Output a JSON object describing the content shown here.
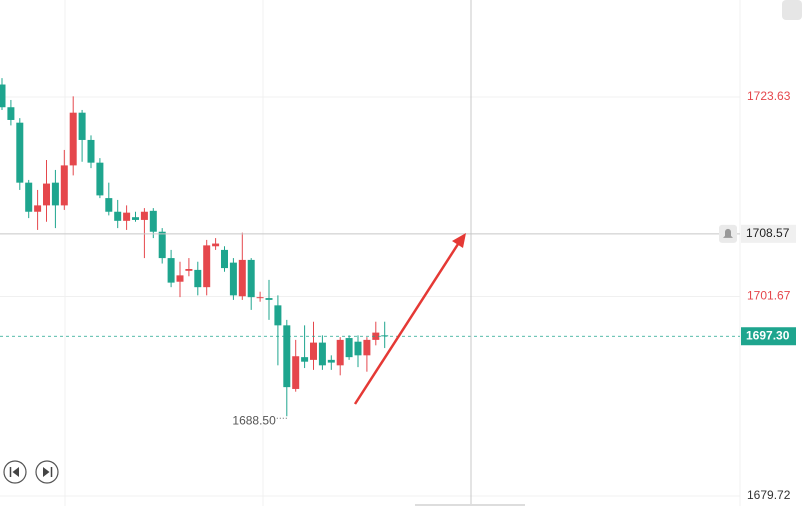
{
  "chart_data": {
    "type": "candlestick",
    "open": [
      1725.0,
      1722.5,
      1720.8,
      1714.2,
      1711.0,
      1711.7,
      1714.2,
      1711.7,
      1716.1,
      1721.9,
      1718.9,
      1716.4,
      1712.5,
      1711.0,
      1710.0,
      1710.4,
      1710.1,
      1711.1,
      1708.8,
      1705.9,
      1703.3,
      1704.5,
      1704.6,
      1702.7,
      1707.2,
      1706.8,
      1705.4,
      1701.7,
      1705.7,
      1701.5,
      1701.5,
      1700.7,
      1698.5,
      1691.5,
      1695.0,
      1694.7,
      1696.6,
      1694.7,
      1694.1,
      1697.1,
      1696.7,
      1695.2,
      1696.9,
      1697.4
    ],
    "high": [
      1725.7,
      1723.3,
      1721.3,
      1714.5,
      1713.4,
      1716.7,
      1715.6,
      1717.8,
      1723.7,
      1722.2,
      1719.4,
      1716.9,
      1714.2,
      1712.3,
      1711.7,
      1711.0,
      1711.4,
      1711.4,
      1709.2,
      1706.8,
      1705.5,
      1705.9,
      1705.5,
      1707.9,
      1708.1,
      1707.2,
      1705.9,
      1708.7,
      1705.9,
      1702.2,
      1703.5,
      1701.8,
      1699.1,
      1696.9,
      1698.5,
      1698.9,
      1697.4,
      1695.2,
      1697.2,
      1697.4,
      1697.4,
      1697.2,
      1698.9,
      1698.9
    ],
    "low": [
      1722.2,
      1720.5,
      1713.4,
      1710.3,
      1709.0,
      1709.9,
      1709.2,
      1711.2,
      1715.0,
      1716.5,
      1715.8,
      1712.5,
      1710.6,
      1709.2,
      1709.0,
      1709.9,
      1705.9,
      1708.1,
      1705.3,
      1702.7,
      1701.6,
      1703.9,
      1701.8,
      1701.8,
      1706.8,
      1704.4,
      1701.3,
      1701.3,
      1700.2,
      1701.1,
      1699.1,
      1694.1,
      1688.5,
      1691.2,
      1693.8,
      1693.6,
      1693.6,
      1693.6,
      1693.0,
      1694.7,
      1693.9,
      1693.4,
      1696.3,
      1696.0
    ],
    "close": [
      1722.5,
      1721.1,
      1714.2,
      1711.0,
      1711.7,
      1714.1,
      1711.7,
      1716.1,
      1721.9,
      1718.9,
      1716.4,
      1712.8,
      1711.0,
      1710.0,
      1710.9,
      1710.1,
      1711.0,
      1708.8,
      1705.9,
      1703.2,
      1704.0,
      1704.7,
      1702.7,
      1707.3,
      1707.5,
      1704.8,
      1701.8,
      1705.7,
      1701.6,
      1701.6,
      1701.3,
      1698.5,
      1691.7,
      1695.1,
      1694.5,
      1696.6,
      1694.1,
      1694.4,
      1696.9,
      1695.0,
      1695.2,
      1696.9,
      1697.7,
      1697.3
    ],
    "up_color": "#e5474c",
    "down_color": "#1ea58e",
    "ylim": [
      1678.62,
      1734.3
    ],
    "yticks": [
      1723.63,
      1701.67,
      1679.72
    ],
    "ytick_colors": [
      "#e5474c",
      "#e5474c",
      "#333333"
    ],
    "crosshair_price": 1708.57,
    "last_price": {
      "value": 1697.3,
      "label": "1697.30"
    },
    "low_label": {
      "value": 1688.5,
      "label": "1688.50"
    },
    "grid": true
  }
}
